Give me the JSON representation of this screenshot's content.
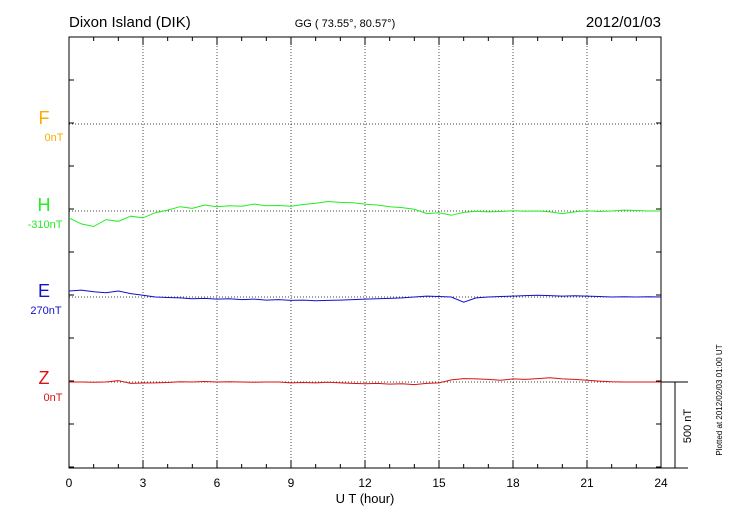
{
  "header": {
    "station": "Dixon Island (DIK)",
    "coords": "GG ( 73.55°,  80.57°)",
    "date": "2012/01/03"
  },
  "footer_note": "Plotted at 2012/02/03 01:00 UT",
  "scale_bar": {
    "label": "500 nT",
    "value_nT": 500
  },
  "chart_data": {
    "type": "line",
    "xlabel": "U T (hour)",
    "xlim": [
      0,
      24
    ],
    "xticks": [
      0,
      3,
      6,
      9,
      12,
      15,
      18,
      21,
      24
    ],
    "grid": true,
    "series": [
      {
        "name": "F",
        "offset_label": "0nT",
        "color": "#ffaa00",
        "values": []
      },
      {
        "name": "H",
        "offset_label": "-310nT",
        "color": "#22ee22",
        "values": [
          [
            0,
            -40
          ],
          [
            0.5,
            -75
          ],
          [
            1,
            -90
          ],
          [
            1.5,
            -50
          ],
          [
            2,
            -60
          ],
          [
            2.5,
            -30
          ],
          [
            3,
            -40
          ],
          [
            3.5,
            -10
          ],
          [
            4,
            5
          ],
          [
            4.5,
            25
          ],
          [
            5,
            15
          ],
          [
            5.5,
            35
          ],
          [
            6,
            25
          ],
          [
            6.5,
            30
          ],
          [
            7,
            28
          ],
          [
            7.5,
            40
          ],
          [
            8,
            30
          ],
          [
            8.5,
            32
          ],
          [
            9,
            28
          ],
          [
            9.5,
            38
          ],
          [
            10,
            45
          ],
          [
            10.5,
            55
          ],
          [
            11,
            50
          ],
          [
            11.5,
            48
          ],
          [
            12,
            40
          ],
          [
            12.5,
            35
          ],
          [
            13,
            25
          ],
          [
            13.5,
            20
          ],
          [
            14,
            10
          ],
          [
            14.5,
            -15
          ],
          [
            15,
            -10
          ],
          [
            15.5,
            -25
          ],
          [
            16,
            -8
          ],
          [
            16.5,
            -2
          ],
          [
            17,
            -5
          ],
          [
            17.5,
            -3
          ],
          [
            18,
            2
          ],
          [
            18.5,
            -2
          ],
          [
            19,
            0
          ],
          [
            19.5,
            -5
          ],
          [
            20,
            -15
          ],
          [
            20.5,
            -5
          ],
          [
            21,
            2
          ],
          [
            21.5,
            -3
          ],
          [
            22,
            0
          ],
          [
            22.5,
            5
          ],
          [
            23,
            3
          ],
          [
            23.5,
            0
          ],
          [
            24,
            0
          ]
        ]
      },
      {
        "name": "E",
        "offset_label": "270nT",
        "color": "#1111cc",
        "values": [
          [
            0,
            35
          ],
          [
            0.5,
            40
          ],
          [
            1,
            30
          ],
          [
            1.5,
            25
          ],
          [
            2,
            35
          ],
          [
            2.5,
            20
          ],
          [
            3,
            10
          ],
          [
            3.5,
            0
          ],
          [
            4,
            -3
          ],
          [
            4.5,
            -5
          ],
          [
            5,
            -10
          ],
          [
            5.5,
            -8
          ],
          [
            6,
            -12
          ],
          [
            6.5,
            -10
          ],
          [
            7,
            -15
          ],
          [
            7.5,
            -12
          ],
          [
            8,
            -18
          ],
          [
            8.5,
            -15
          ],
          [
            9,
            -20
          ],
          [
            9.5,
            -18
          ],
          [
            10,
            -22
          ],
          [
            10.5,
            -20
          ],
          [
            11,
            -18
          ],
          [
            11.5,
            -15
          ],
          [
            12,
            -12
          ],
          [
            12.5,
            -10
          ],
          [
            13,
            -8
          ],
          [
            13.5,
            -5
          ],
          [
            14,
            0
          ],
          [
            14.5,
            5
          ],
          [
            15,
            3
          ],
          [
            15.5,
            0
          ],
          [
            16,
            -30
          ],
          [
            16.5,
            -5
          ],
          [
            17,
            0
          ],
          [
            17.5,
            3
          ],
          [
            18,
            5
          ],
          [
            18.5,
            8
          ],
          [
            19,
            10
          ],
          [
            19.5,
            8
          ],
          [
            20,
            5
          ],
          [
            20.5,
            7
          ],
          [
            21,
            5
          ],
          [
            21.5,
            3
          ],
          [
            22,
            0
          ],
          [
            22.5,
            2
          ],
          [
            23,
            0
          ],
          [
            23.5,
            2
          ],
          [
            24,
            0
          ]
        ]
      },
      {
        "name": "Z",
        "offset_label": "0nT",
        "color": "#dd1111",
        "values": [
          [
            0,
            0
          ],
          [
            0.5,
            0
          ],
          [
            1,
            -2
          ],
          [
            1.5,
            0
          ],
          [
            2,
            8
          ],
          [
            2.5,
            -8
          ],
          [
            3,
            -6
          ],
          [
            3.5,
            -5
          ],
          [
            4,
            -3
          ],
          [
            4.5,
            2
          ],
          [
            5,
            0
          ],
          [
            5.5,
            3
          ],
          [
            6,
            0
          ],
          [
            6.5,
            2
          ],
          [
            7,
            0
          ],
          [
            7.5,
            -2
          ],
          [
            8,
            0
          ],
          [
            8.5,
            0
          ],
          [
            9,
            -5
          ],
          [
            9.5,
            -3
          ],
          [
            10,
            -5
          ],
          [
            10.5,
            -2
          ],
          [
            11,
            -5
          ],
          [
            11.5,
            -8
          ],
          [
            12,
            -10
          ],
          [
            12.5,
            -8
          ],
          [
            13,
            -12
          ],
          [
            13.5,
            -10
          ],
          [
            14,
            -15
          ],
          [
            14.5,
            -8
          ],
          [
            15,
            -5
          ],
          [
            15.5,
            12
          ],
          [
            16,
            20
          ],
          [
            16.5,
            18
          ],
          [
            17,
            15
          ],
          [
            17.5,
            10
          ],
          [
            18,
            18
          ],
          [
            18.5,
            15
          ],
          [
            19,
            20
          ],
          [
            19.5,
            25
          ],
          [
            20,
            18
          ],
          [
            20.5,
            15
          ],
          [
            21,
            10
          ],
          [
            21.5,
            5
          ],
          [
            22,
            2
          ],
          [
            22.5,
            0
          ],
          [
            23,
            0
          ],
          [
            23.5,
            0
          ],
          [
            24,
            0
          ]
        ]
      }
    ]
  }
}
